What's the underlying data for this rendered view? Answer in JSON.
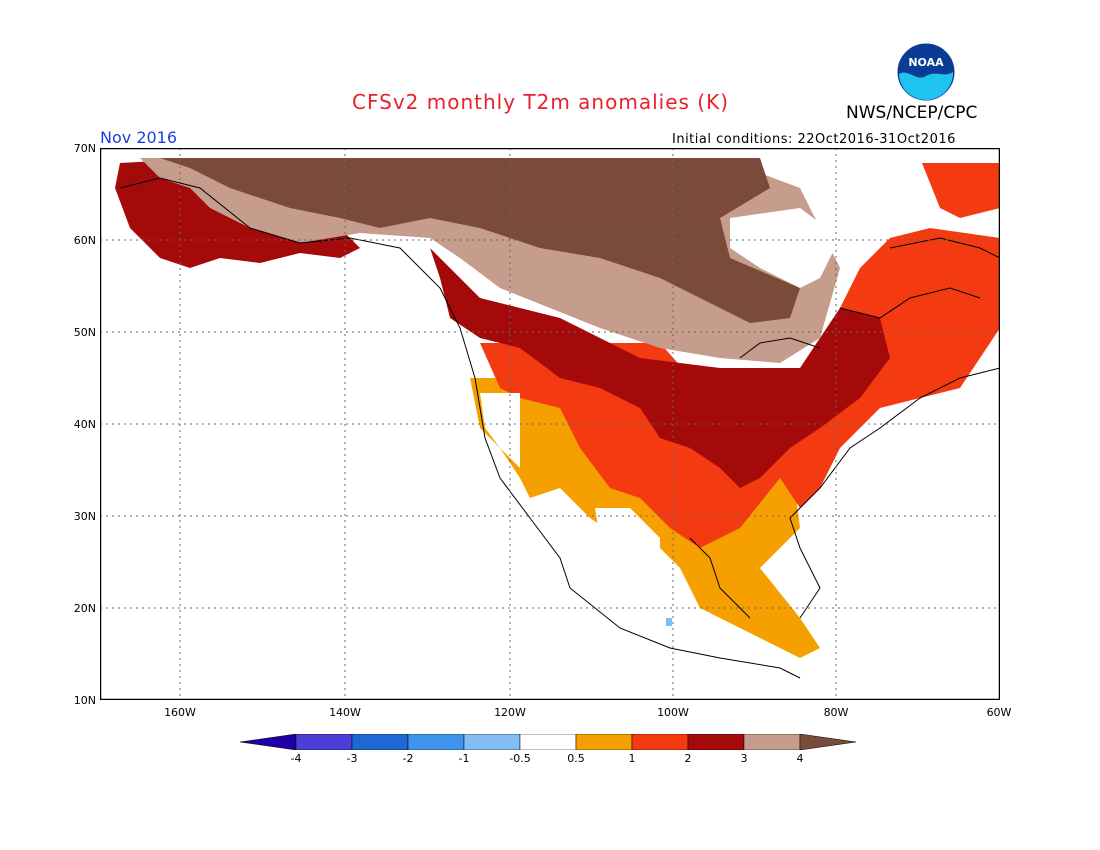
{
  "title": "CFSv2 monthly T2m anomalies (K)",
  "month": "Nov 2016",
  "initial_conditions": "Initial conditions: 22Oct2016-31Oct2016",
  "agency": "NWS/NCEP/CPC",
  "logo_text": "NOAA",
  "colors": {
    "title": "#e8212a",
    "month": "#1d3fe0",
    "land_outline": "#000000",
    "ocean": "#ffffff"
  },
  "lat_labels": [
    "70N",
    "60N",
    "50N",
    "40N",
    "30N",
    "20N",
    "10N"
  ],
  "lon_labels": [
    "160W",
    "140W",
    "120W",
    "100W",
    "80W",
    "60W"
  ],
  "colorbar": {
    "labels": [
      "-4",
      "-3",
      "-2",
      "-1",
      "-0.5",
      "0.5",
      "1",
      "2",
      "3",
      "4"
    ],
    "colors": [
      "#1f00a8",
      "#4a3fd6",
      "#1f68d4",
      "#3f94ec",
      "#84bdf2",
      "#ffffff",
      "#f5a000",
      "#f43a10",
      "#a50a0a",
      "#c69c8c",
      "#7a4a3a"
    ]
  },
  "map_data": {
    "domain": {
      "lon_min": -170,
      "lon_max": -60,
      "lat_min": 10,
      "lat_max": 70
    },
    "regions": [
      {
        "name": "Northern Canada / Alaska interior",
        "category": ">4"
      },
      {
        "name": "Central Canada",
        "category": "3 to 4"
      },
      {
        "name": "Central and Eastern US",
        "category": "2 to 3"
      },
      {
        "name": "Southern US / Quebec",
        "category": "1 to 2"
      },
      {
        "name": "Mexico / Central America coasts",
        "category": "0.5 to 1"
      },
      {
        "name": "Central Mexico plateau",
        "category": "-1 to -0.5"
      }
    ]
  }
}
